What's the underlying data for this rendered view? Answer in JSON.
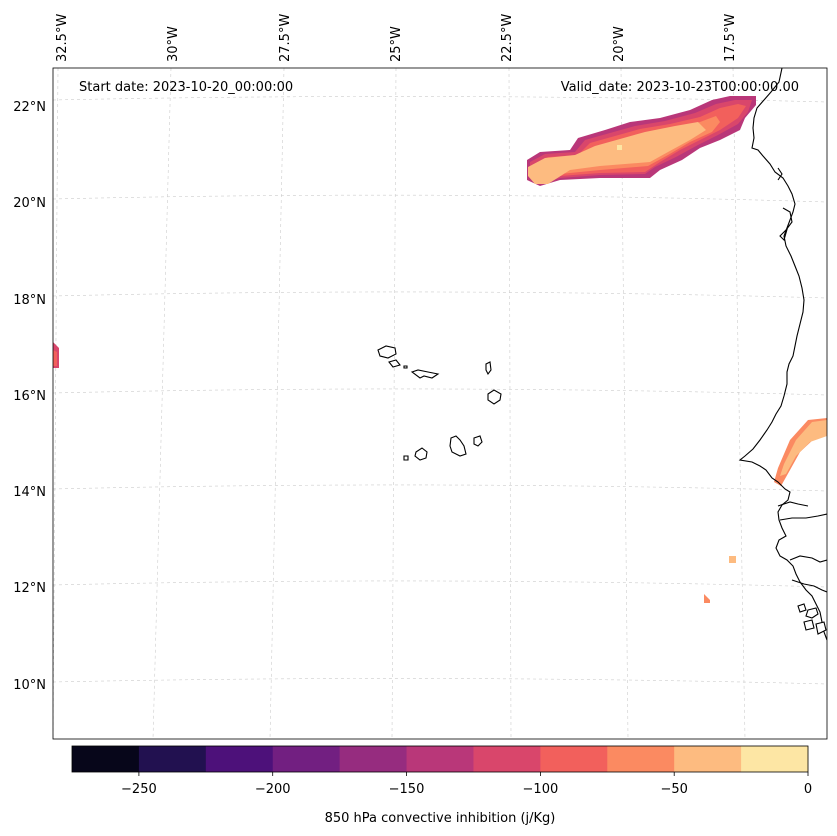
{
  "map": {
    "start_label": "Start date: 2023-10-20_00:00:00",
    "valid_label": "Valid_date: 2023-10-23T00:00:00.00",
    "lon_ticks": [
      "32.5°W",
      "30°W",
      "27.5°W",
      "25°W",
      "22.5°W",
      "20°W",
      "17.5°W"
    ],
    "lat_ticks": [
      "22°N",
      "20°N",
      "18°N",
      "16°N",
      "14°N",
      "12°N",
      "10°N"
    ]
  },
  "colorbar": {
    "label": "850 hPa convective inhibition (j/Kg)",
    "ticks": [
      "−250",
      "−200",
      "−150",
      "−100",
      "−50",
      "0"
    ],
    "levels": [
      -275,
      -250,
      -225,
      -200,
      -175,
      -150,
      -125,
      -100,
      -75,
      -50,
      -25,
      0
    ],
    "colors": [
      "#07061a",
      "#221150",
      "#4d117a",
      "#721f81",
      "#962c7f",
      "#b93779",
      "#d9466b",
      "#f2605c",
      "#fb8a61",
      "#fdbb80",
      "#fde6a4"
    ]
  },
  "colors": {
    "coastline": "#000000",
    "gridline": "#cccccc"
  }
}
